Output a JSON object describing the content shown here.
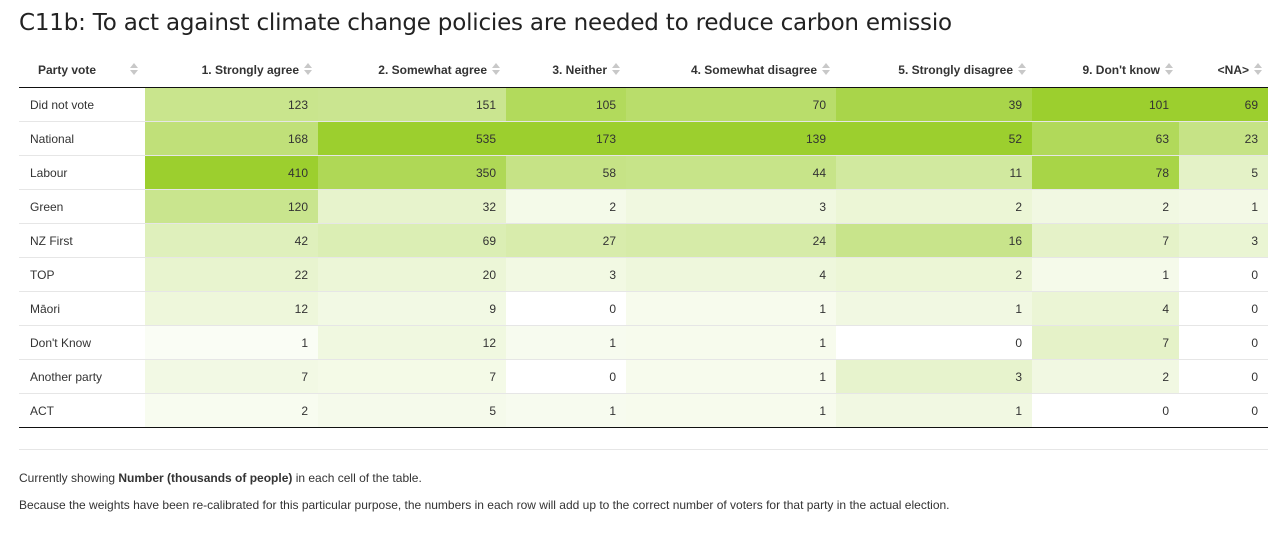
{
  "title": "C11b: To act against climate change policies are needed to reduce carbon emissio",
  "colors": {
    "heat_low": "#ffffff",
    "heat_high": "#9ccf2e",
    "header_rule": "#111111"
  },
  "chart_data": {
    "type": "heatmap",
    "row_header": "Party vote",
    "columns": [
      "1. Strongly agree",
      "2. Somewhat agree",
      "3. Neither",
      "4. Somewhat disagree",
      "5. Strongly disagree",
      "9. Don't know",
      "<NA>"
    ],
    "rows": [
      {
        "label": "Did not vote",
        "values": [
          123,
          151,
          105,
          70,
          39,
          101,
          69
        ]
      },
      {
        "label": "National",
        "values": [
          168,
          535,
          173,
          139,
          52,
          63,
          23
        ]
      },
      {
        "label": "Labour",
        "values": [
          410,
          350,
          58,
          44,
          11,
          78,
          5
        ]
      },
      {
        "label": "Green",
        "values": [
          120,
          32,
          2,
          3,
          2,
          2,
          1
        ]
      },
      {
        "label": "NZ First",
        "values": [
          42,
          69,
          27,
          24,
          16,
          7,
          3
        ]
      },
      {
        "label": "TOP",
        "values": [
          22,
          20,
          3,
          4,
          2,
          1,
          0
        ]
      },
      {
        "label": "Māori",
        "values": [
          12,
          9,
          0,
          1,
          1,
          4,
          0
        ]
      },
      {
        "label": "Don't Know",
        "values": [
          1,
          12,
          1,
          1,
          0,
          7,
          0
        ]
      },
      {
        "label": "Another party",
        "values": [
          7,
          7,
          0,
          1,
          3,
          2,
          0
        ]
      },
      {
        "label": "ACT",
        "values": [
          2,
          5,
          1,
          1,
          1,
          0,
          0
        ]
      }
    ]
  },
  "notes": {
    "showing_prefix": "Currently showing ",
    "showing_bold": "Number (thousands of people)",
    "showing_suffix": " in each cell of the table.",
    "weights": "Because the weights have been re-calibrated for this particular purpose, the numbers in each row will add up to the correct number of voters for that party in the actual election."
  }
}
